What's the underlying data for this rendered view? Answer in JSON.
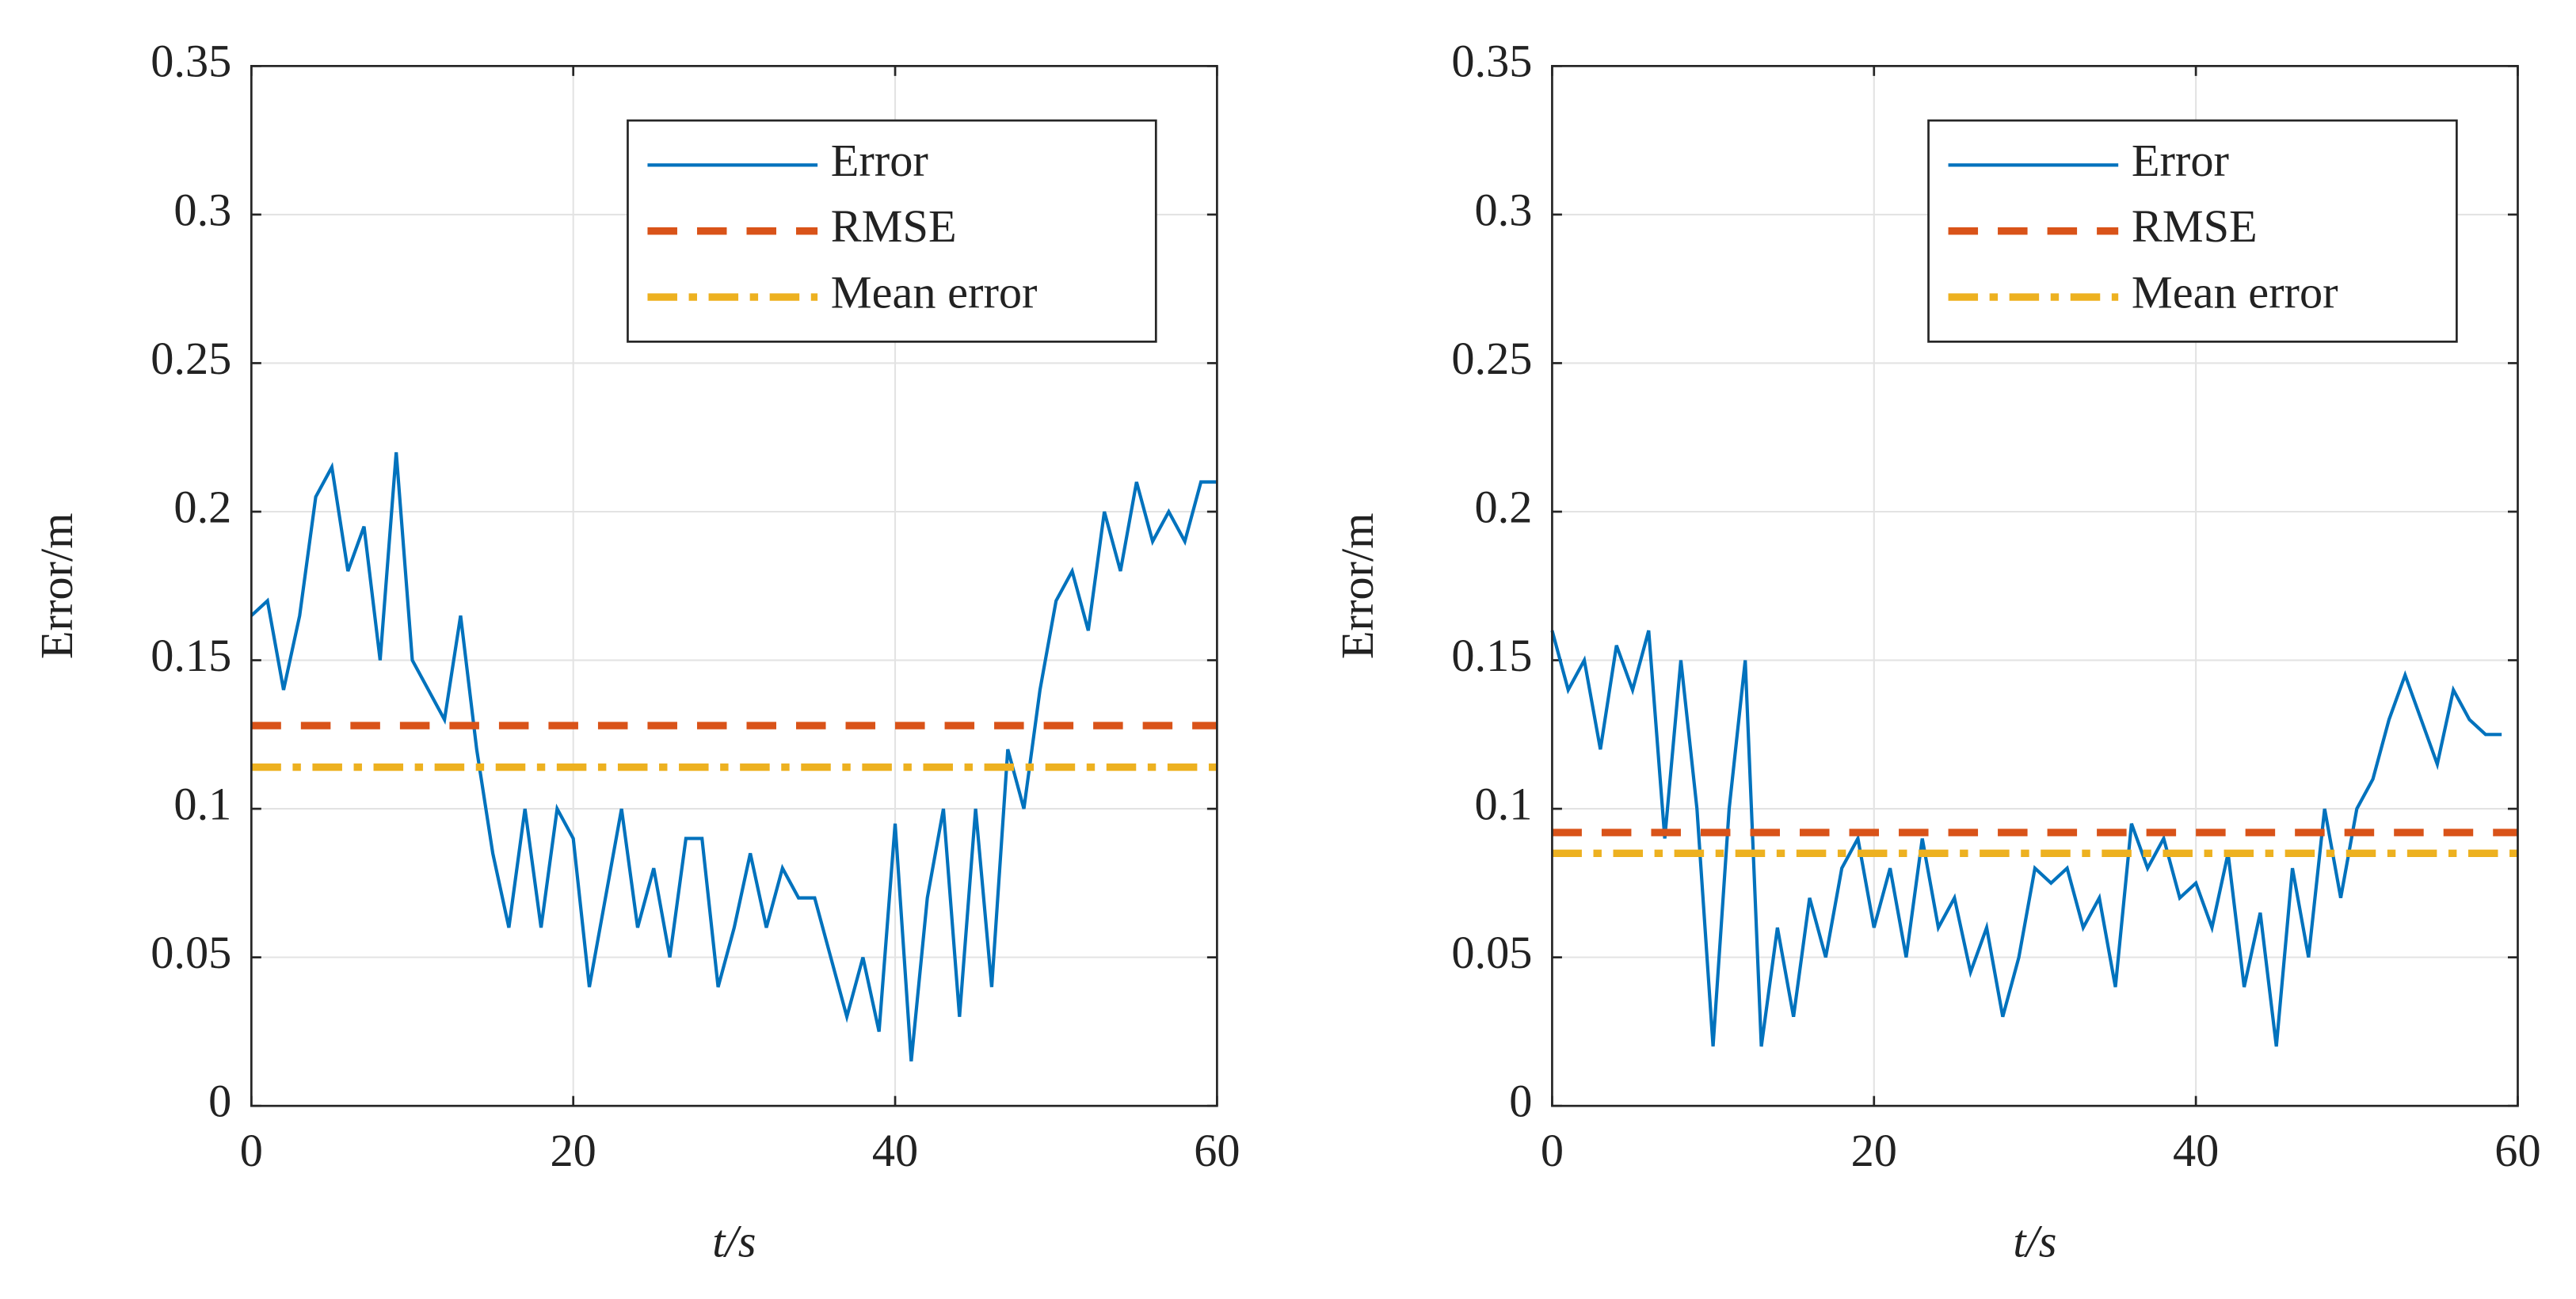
{
  "chart_data": [
    {
      "type": "line",
      "xlabel": "t/s",
      "ylabel": "Error/m",
      "xlim": [
        0,
        60
      ],
      "ylim": [
        0,
        0.35
      ],
      "xticks": [
        0,
        20,
        40,
        60
      ],
      "yticks": [
        0,
        0.05,
        0.1,
        0.15,
        0.2,
        0.25,
        0.3,
        0.35
      ],
      "grid": true,
      "legend": "upper right",
      "series": [
        {
          "name": "Error",
          "color": "#0072BD",
          "linestyle": "solid",
          "x": [
            0,
            1,
            2,
            3,
            4,
            5,
            6,
            7,
            8,
            9,
            10,
            11,
            12,
            13,
            14,
            15,
            16,
            17,
            18,
            19,
            20,
            21,
            22,
            23,
            24,
            25,
            26,
            27,
            28,
            29,
            30,
            31,
            32,
            33,
            34,
            35,
            36,
            37,
            38,
            39,
            40,
            41,
            42,
            43,
            44,
            45,
            46,
            47,
            48,
            49,
            50,
            51,
            52,
            53,
            54,
            55,
            56,
            57,
            58,
            59,
            60
          ],
          "values": [
            0.165,
            0.17,
            0.14,
            0.165,
            0.205,
            0.215,
            0.18,
            0.195,
            0.15,
            0.22,
            0.15,
            0.14,
            0.13,
            0.165,
            0.12,
            0.085,
            0.06,
            0.1,
            0.06,
            0.1,
            0.09,
            0.04,
            0.07,
            0.1,
            0.06,
            0.08,
            0.05,
            0.09,
            0.09,
            0.04,
            0.06,
            0.085,
            0.06,
            0.08,
            0.07,
            0.07,
            0.05,
            0.03,
            0.05,
            0.025,
            0.095,
            0.015,
            0.07,
            0.1,
            0.03,
            0.1,
            0.04,
            0.12,
            0.1,
            0.14,
            0.17,
            0.18,
            0.16,
            0.2,
            0.18,
            0.21,
            0.19,
            0.2,
            0.19,
            0.21,
            0.21
          ]
        },
        {
          "name": "RMSE",
          "color": "#D95319",
          "linestyle": "dashed",
          "x": [
            0,
            60
          ],
          "values": [
            0.128,
            0.128
          ]
        },
        {
          "name": "Mean error",
          "color": "#EDB120",
          "linestyle": "dashdot",
          "x": [
            0,
            60
          ],
          "values": [
            0.114,
            0.114
          ]
        }
      ]
    },
    {
      "type": "line",
      "xlabel": "t/s",
      "ylabel": "Error/m",
      "xlim": [
        0,
        60
      ],
      "ylim": [
        0,
        0.35
      ],
      "xticks": [
        0,
        20,
        40,
        60
      ],
      "yticks": [
        0,
        0.05,
        0.1,
        0.15,
        0.2,
        0.25,
        0.3,
        0.35
      ],
      "grid": true,
      "legend": "upper right",
      "series": [
        {
          "name": "Error",
          "color": "#0072BD",
          "linestyle": "solid",
          "x": [
            0,
            1,
            2,
            3,
            4,
            5,
            6,
            7,
            8,
            9,
            10,
            11,
            12,
            13,
            14,
            15,
            16,
            17,
            18,
            19,
            20,
            21,
            22,
            23,
            24,
            25,
            26,
            27,
            28,
            29,
            30,
            31,
            32,
            33,
            34,
            35,
            36,
            37,
            38,
            39,
            40,
            41,
            42,
            43,
            44,
            45,
            46,
            47,
            48,
            49,
            50,
            51,
            52,
            53,
            54,
            55,
            56,
            57,
            58,
            59
          ],
          "values": [
            0.16,
            0.14,
            0.15,
            0.12,
            0.155,
            0.14,
            0.16,
            0.09,
            0.15,
            0.1,
            0.02,
            0.1,
            0.15,
            0.02,
            0.06,
            0.03,
            0.07,
            0.05,
            0.08,
            0.09,
            0.06,
            0.08,
            0.05,
            0.09,
            0.06,
            0.07,
            0.045,
            0.06,
            0.03,
            0.05,
            0.08,
            0.075,
            0.08,
            0.06,
            0.07,
            0.04,
            0.095,
            0.08,
            0.09,
            0.07,
            0.075,
            0.06,
            0.085,
            0.04,
            0.065,
            0.02,
            0.08,
            0.05,
            0.1,
            0.07,
            0.1,
            0.11,
            0.13,
            0.145,
            0.13,
            0.115,
            0.14,
            0.13,
            0.125,
            0.125
          ]
        },
        {
          "name": "RMSE",
          "color": "#D95319",
          "linestyle": "dashed",
          "x": [
            0,
            60
          ],
          "values": [
            0.092,
            0.092
          ]
        },
        {
          "name": "Mean error",
          "color": "#EDB120",
          "linestyle": "dashdot",
          "x": [
            0,
            60
          ],
          "values": [
            0.085,
            0.085
          ]
        }
      ]
    }
  ]
}
